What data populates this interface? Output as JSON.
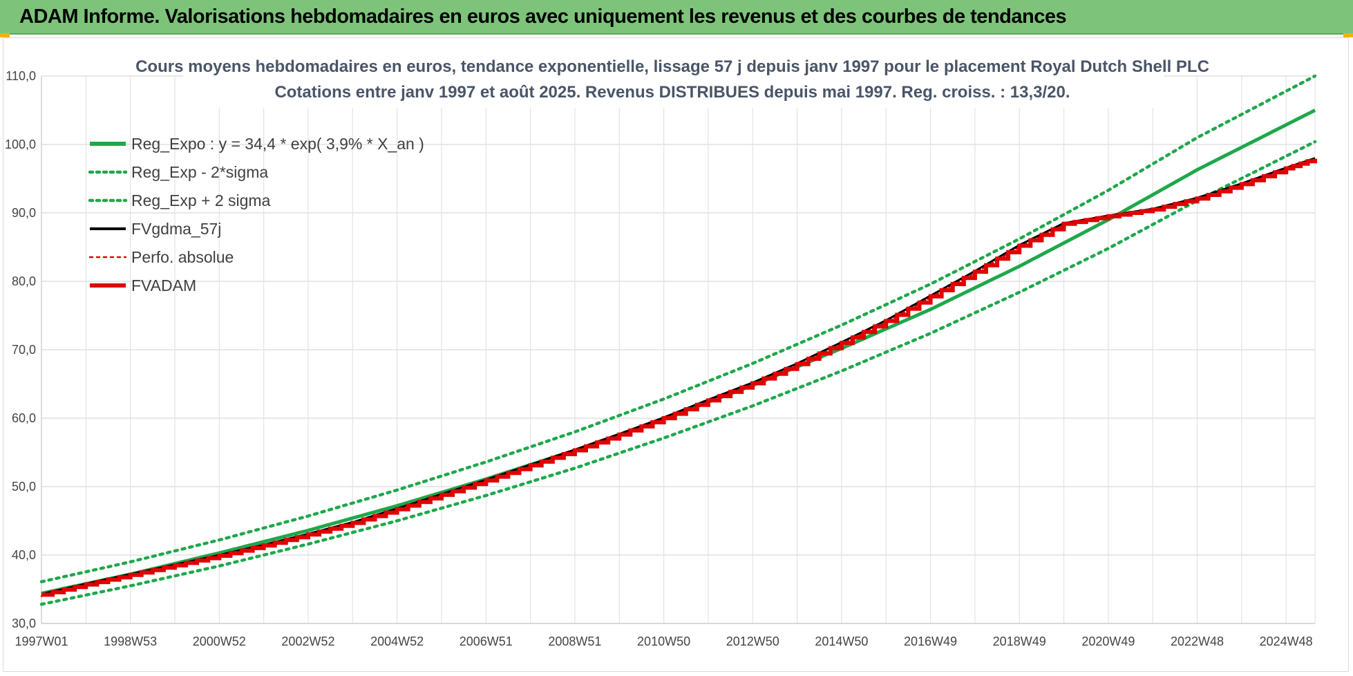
{
  "banner": {
    "title": "ADAM Informe. Valorisations hebdomadaires en euros avec uniquement les revenus et des courbes de tendances"
  },
  "chart_data": {
    "type": "line",
    "title": "Cours moyens hebdomadaires en euros, tendance exponentielle, lissage 57 j depuis janv 1997 pour le placement Royal Dutch Shell PLC",
    "subtitle": "Cotations entre janv 1997 et août 2025.  Revenus DISTRIBUES depuis mai 1997. Reg. croiss. : 13,3/20.",
    "xlabel": "",
    "ylabel": "",
    "ylim": [
      30,
      110
    ],
    "y_ticks": [
      "30,0",
      "40,0",
      "50,0",
      "60,0",
      "70,0",
      "80,0",
      "90,0",
      "100,0",
      "110,0"
    ],
    "x_range": [
      1997.0,
      2025.65
    ],
    "x_ticks": [
      {
        "label": "1997W01",
        "x": 1997.0
      },
      {
        "label": "1998W53",
        "x": 1999.0
      },
      {
        "label": "2000W52",
        "x": 2001.0
      },
      {
        "label": "2002W52",
        "x": 2003.0
      },
      {
        "label": "2004W52",
        "x": 2005.0
      },
      {
        "label": "2006W51",
        "x": 2007.0
      },
      {
        "label": "2008W51",
        "x": 2009.0
      },
      {
        "label": "2010W50",
        "x": 2011.0
      },
      {
        "label": "2012W50",
        "x": 2013.0
      },
      {
        "label": "2014W50",
        "x": 2015.0
      },
      {
        "label": "2016W49",
        "x": 2017.0
      },
      {
        "label": "2018W49",
        "x": 2019.0
      },
      {
        "label": "2020W49",
        "x": 2021.0
      },
      {
        "label": "2022W48",
        "x": 2023.0
      },
      {
        "label": "2024W48",
        "x": 2025.0
      }
    ],
    "grid": true,
    "legend_position": "top-left",
    "series": [
      {
        "name": "Reg_Expo : y = 34,4 * exp( 3,9% *  X_an )",
        "color": "#1ea84b",
        "style": "solid",
        "x": [
          1997.0,
          1999.0,
          2001.0,
          2003.0,
          2005.0,
          2007.0,
          2009.0,
          2011.0,
          2013.0,
          2015.0,
          2017.0,
          2019.0,
          2021.0,
          2023.0,
          2025.65
        ],
        "values": [
          34.4,
          37.2,
          40.3,
          43.6,
          47.2,
          51.1,
          55.3,
          59.9,
          64.8,
          70.2,
          75.9,
          82.2,
          89.0,
          96.3,
          105.0
        ]
      },
      {
        "name": "Reg_Exp - 2*sigma",
        "color": "#1ea84b",
        "style": "dotted",
        "x": [
          1997.0,
          1999.0,
          2001.0,
          2003.0,
          2005.0,
          2007.0,
          2009.0,
          2011.0,
          2013.0,
          2015.0,
          2017.0,
          2019.0,
          2021.0,
          2023.0,
          2025.65
        ],
        "values": [
          32.8,
          35.5,
          38.4,
          41.6,
          45.0,
          48.7,
          52.7,
          57.1,
          61.8,
          66.9,
          72.4,
          78.4,
          84.8,
          91.8,
          100.4
        ]
      },
      {
        "name": "Reg_Exp + 2 sigma",
        "color": "#1ea84b",
        "style": "dotted",
        "x": [
          1997.0,
          1999.0,
          2001.0,
          2003.0,
          2005.0,
          2007.0,
          2009.0,
          2011.0,
          2013.0,
          2015.0,
          2017.0,
          2019.0,
          2021.0,
          2023.0,
          2025.65
        ],
        "values": [
          36.1,
          39.0,
          42.2,
          45.7,
          49.5,
          53.6,
          58.0,
          62.8,
          68.0,
          73.6,
          79.6,
          86.2,
          93.3,
          101.0,
          110.0
        ]
      },
      {
        "name": "FVgdma_57j",
        "color": "#000000",
        "style": "solid",
        "x": [
          1997.0,
          1998.0,
          1999.0,
          2000.0,
          2001.0,
          2002.0,
          2003.0,
          2004.0,
          2005.0,
          2006.0,
          2007.0,
          2008.0,
          2009.0,
          2010.0,
          2011.0,
          2012.0,
          2013.0,
          2014.0,
          2015.0,
          2016.0,
          2017.0,
          2018.0,
          2019.0,
          2020.0,
          2021.0,
          2022.0,
          2023.0,
          2024.0,
          2025.0,
          2025.65
        ],
        "values": [
          34.3,
          35.8,
          37.2,
          38.6,
          40.0,
          41.5,
          43.1,
          44.8,
          46.8,
          48.9,
          51.0,
          53.2,
          55.4,
          57.7,
          60.1,
          62.7,
          65.2,
          68.0,
          71.1,
          74.3,
          77.9,
          81.5,
          85.3,
          88.5,
          89.6,
          90.6,
          92.2,
          94.3,
          96.6,
          98.0
        ]
      },
      {
        "name": "Perfo. absolue",
        "color": "#e00000",
        "style": "dotted",
        "x": [
          1997.0,
          1998.0,
          1999.0,
          2000.0,
          2001.0,
          2002.0,
          2003.0,
          2004.0,
          2005.0,
          2006.0,
          2007.0,
          2008.0,
          2009.0,
          2010.0,
          2011.0,
          2012.0,
          2013.0,
          2014.0,
          2015.0,
          2016.0,
          2017.0,
          2018.0,
          2019.0,
          2020.0,
          2021.0,
          2022.0,
          2023.0,
          2024.0,
          2025.0,
          2025.65
        ],
        "values": [
          34.0,
          35.5,
          36.9,
          38.3,
          39.7,
          41.2,
          42.8,
          44.5,
          46.5,
          48.6,
          50.7,
          52.9,
          55.1,
          57.4,
          59.8,
          62.4,
          64.9,
          67.7,
          70.8,
          74.0,
          77.6,
          81.2,
          85.0,
          88.2,
          89.3,
          90.3,
          91.9,
          94.0,
          96.3,
          97.7
        ]
      },
      {
        "name": "FVADAM",
        "color": "#e00000",
        "style": "step",
        "x": [
          1997.0,
          1998.0,
          1999.0,
          2000.0,
          2001.0,
          2002.0,
          2003.0,
          2004.0,
          2005.0,
          2006.0,
          2007.0,
          2008.0,
          2009.0,
          2010.0,
          2011.0,
          2012.0,
          2013.0,
          2014.0,
          2015.0,
          2016.0,
          2017.0,
          2018.0,
          2019.0,
          2020.0,
          2021.0,
          2022.0,
          2023.0,
          2024.0,
          2025.0,
          2025.65
        ],
        "values": [
          34.2,
          35.7,
          37.1,
          38.5,
          39.9,
          41.4,
          43.0,
          44.7,
          46.7,
          48.8,
          50.9,
          53.1,
          55.3,
          57.6,
          60.0,
          62.6,
          65.1,
          67.9,
          71.0,
          74.2,
          77.8,
          81.4,
          85.2,
          88.4,
          89.5,
          90.5,
          92.1,
          94.2,
          96.5,
          97.9
        ]
      }
    ]
  }
}
